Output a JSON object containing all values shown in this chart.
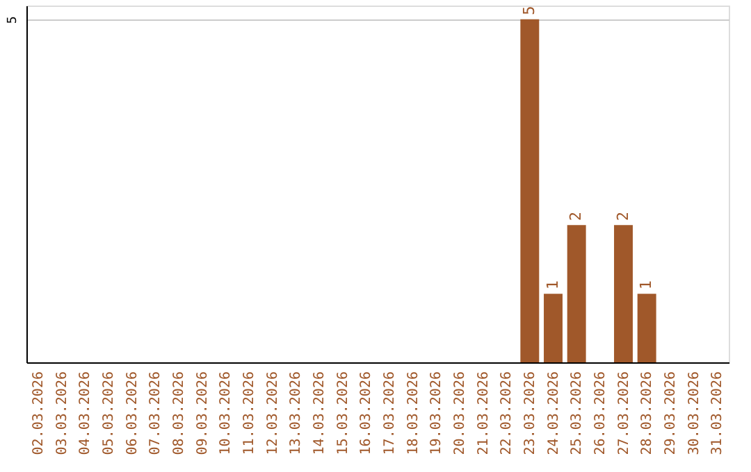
{
  "chart_data": {
    "type": "bar",
    "categories": [
      "02.03.2026",
      "03.03.2026",
      "04.03.2026",
      "05.03.2026",
      "06.03.2026",
      "07.03.2026",
      "08.03.2026",
      "09.03.2026",
      "10.03.2026",
      "11.03.2026",
      "12.03.2026",
      "13.03.2026",
      "14.03.2026",
      "15.03.2026",
      "16.03.2026",
      "17.03.2026",
      "18.03.2026",
      "19.03.2026",
      "20.03.2026",
      "21.03.2026",
      "22.03.2026",
      "23.03.2026",
      "24.03.2026",
      "25.03.2026",
      "26.03.2026",
      "27.03.2026",
      "28.03.2026",
      "29.03.2026",
      "30.03.2026",
      "31.03.2026"
    ],
    "values": [
      null,
      null,
      null,
      null,
      null,
      null,
      null,
      null,
      null,
      null,
      null,
      null,
      null,
      null,
      null,
      null,
      null,
      null,
      null,
      null,
      null,
      5,
      1,
      2,
      null,
      2,
      1,
      null,
      null,
      null
    ],
    "color": "#a0582a",
    "ylim": [
      0,
      5.2
    ],
    "yticks": [
      {
        "value": 0,
        "label": null
      },
      5
    ],
    "grid": "y",
    "data_labels": true
  }
}
